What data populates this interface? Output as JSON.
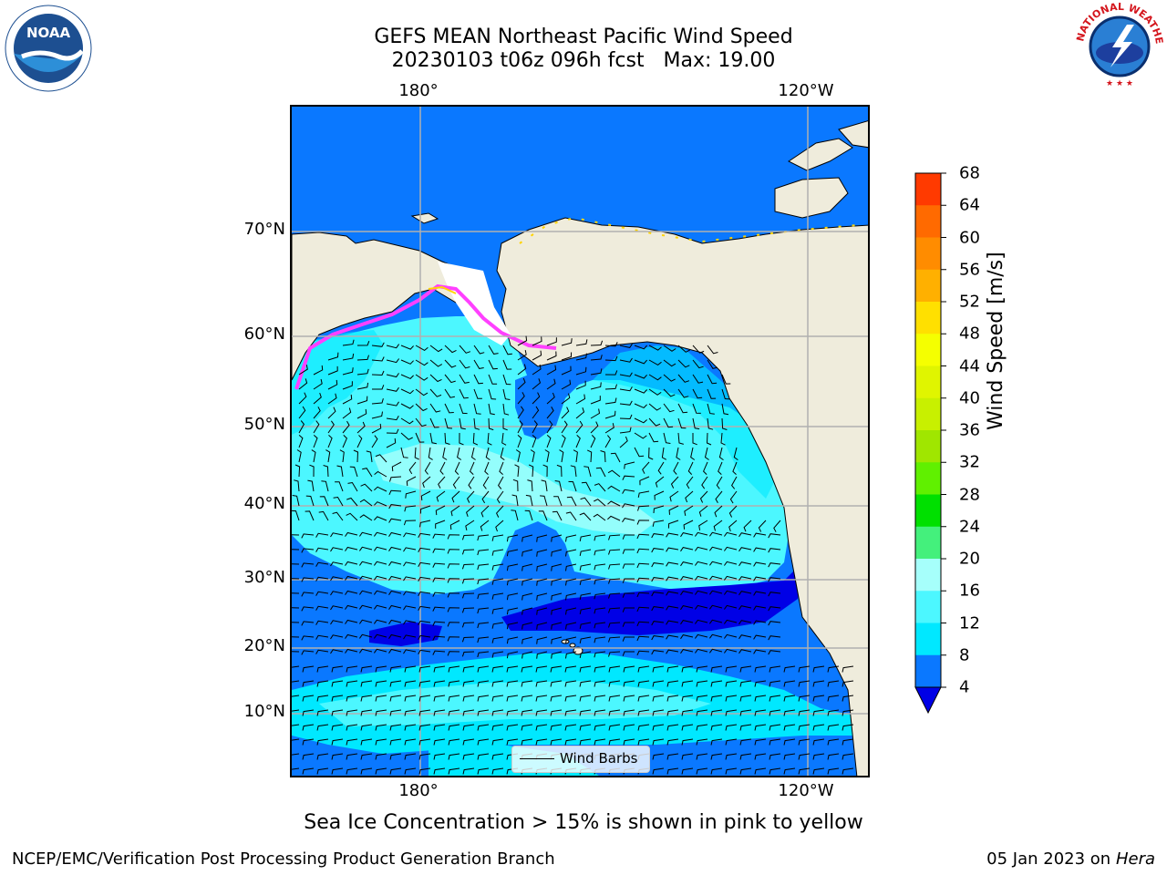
{
  "header": {
    "title_line1": "GEFS MEAN Northeast Pacific Wind Speed",
    "title_line2": "20230103 t06z 096h fcst   Max: 19.00"
  },
  "logos": {
    "left": "noaa-logo",
    "right": "national-weather-service-logo",
    "left_text": "NOAA",
    "right_text": "NATIONAL WEATHER SERVICE"
  },
  "map": {
    "lon_labels_top": [
      "180°",
      "120°W"
    ],
    "lon_labels_bottom": [
      "180°",
      "120°W"
    ],
    "lat_labels": [
      "70°N",
      "60°N",
      "50°N",
      "40°N",
      "30°N",
      "20°N",
      "10°N"
    ],
    "legend_label": "Wind Barbs",
    "colors": {
      "land": "#efecdc",
      "ocean_4_8": "#0a78ff",
      "ocean_8_12": "#00e8ff",
      "ocean_12_16": "#4cf7ff",
      "ocean_16_20": "#a6fffb",
      "ocean_lt4": "#0000e6",
      "ice_pink": "#ff40ff",
      "ice_yellow": "#ffd400",
      "grid": "#b0b0b0"
    }
  },
  "colorbar": {
    "label": "Wind Speed [m/s]",
    "ticks": [
      "68",
      "64",
      "60",
      "56",
      "52",
      "48",
      "44",
      "40",
      "36",
      "32",
      "28",
      "24",
      "20",
      "16",
      "12",
      "8",
      "4"
    ],
    "colors": [
      "#ff0000",
      "#ff3a00",
      "#ff6a00",
      "#ff8c00",
      "#ffb000",
      "#ffe000",
      "#f5ff00",
      "#e0f500",
      "#c8f000",
      "#a0e600",
      "#60f000",
      "#00e000",
      "#44f07c",
      "#a6fffb",
      "#4cf7ff",
      "#00e8ff",
      "#0a78ff",
      "#0000e6"
    ]
  },
  "caption": "Sea Ice Concentration > 15% is shown in pink to yellow",
  "footer": {
    "left": "NCEP/EMC/Verification Post Processing Product Generation Branch",
    "right_prefix": "05 Jan 2023 on ",
    "right_host": "Hera"
  }
}
